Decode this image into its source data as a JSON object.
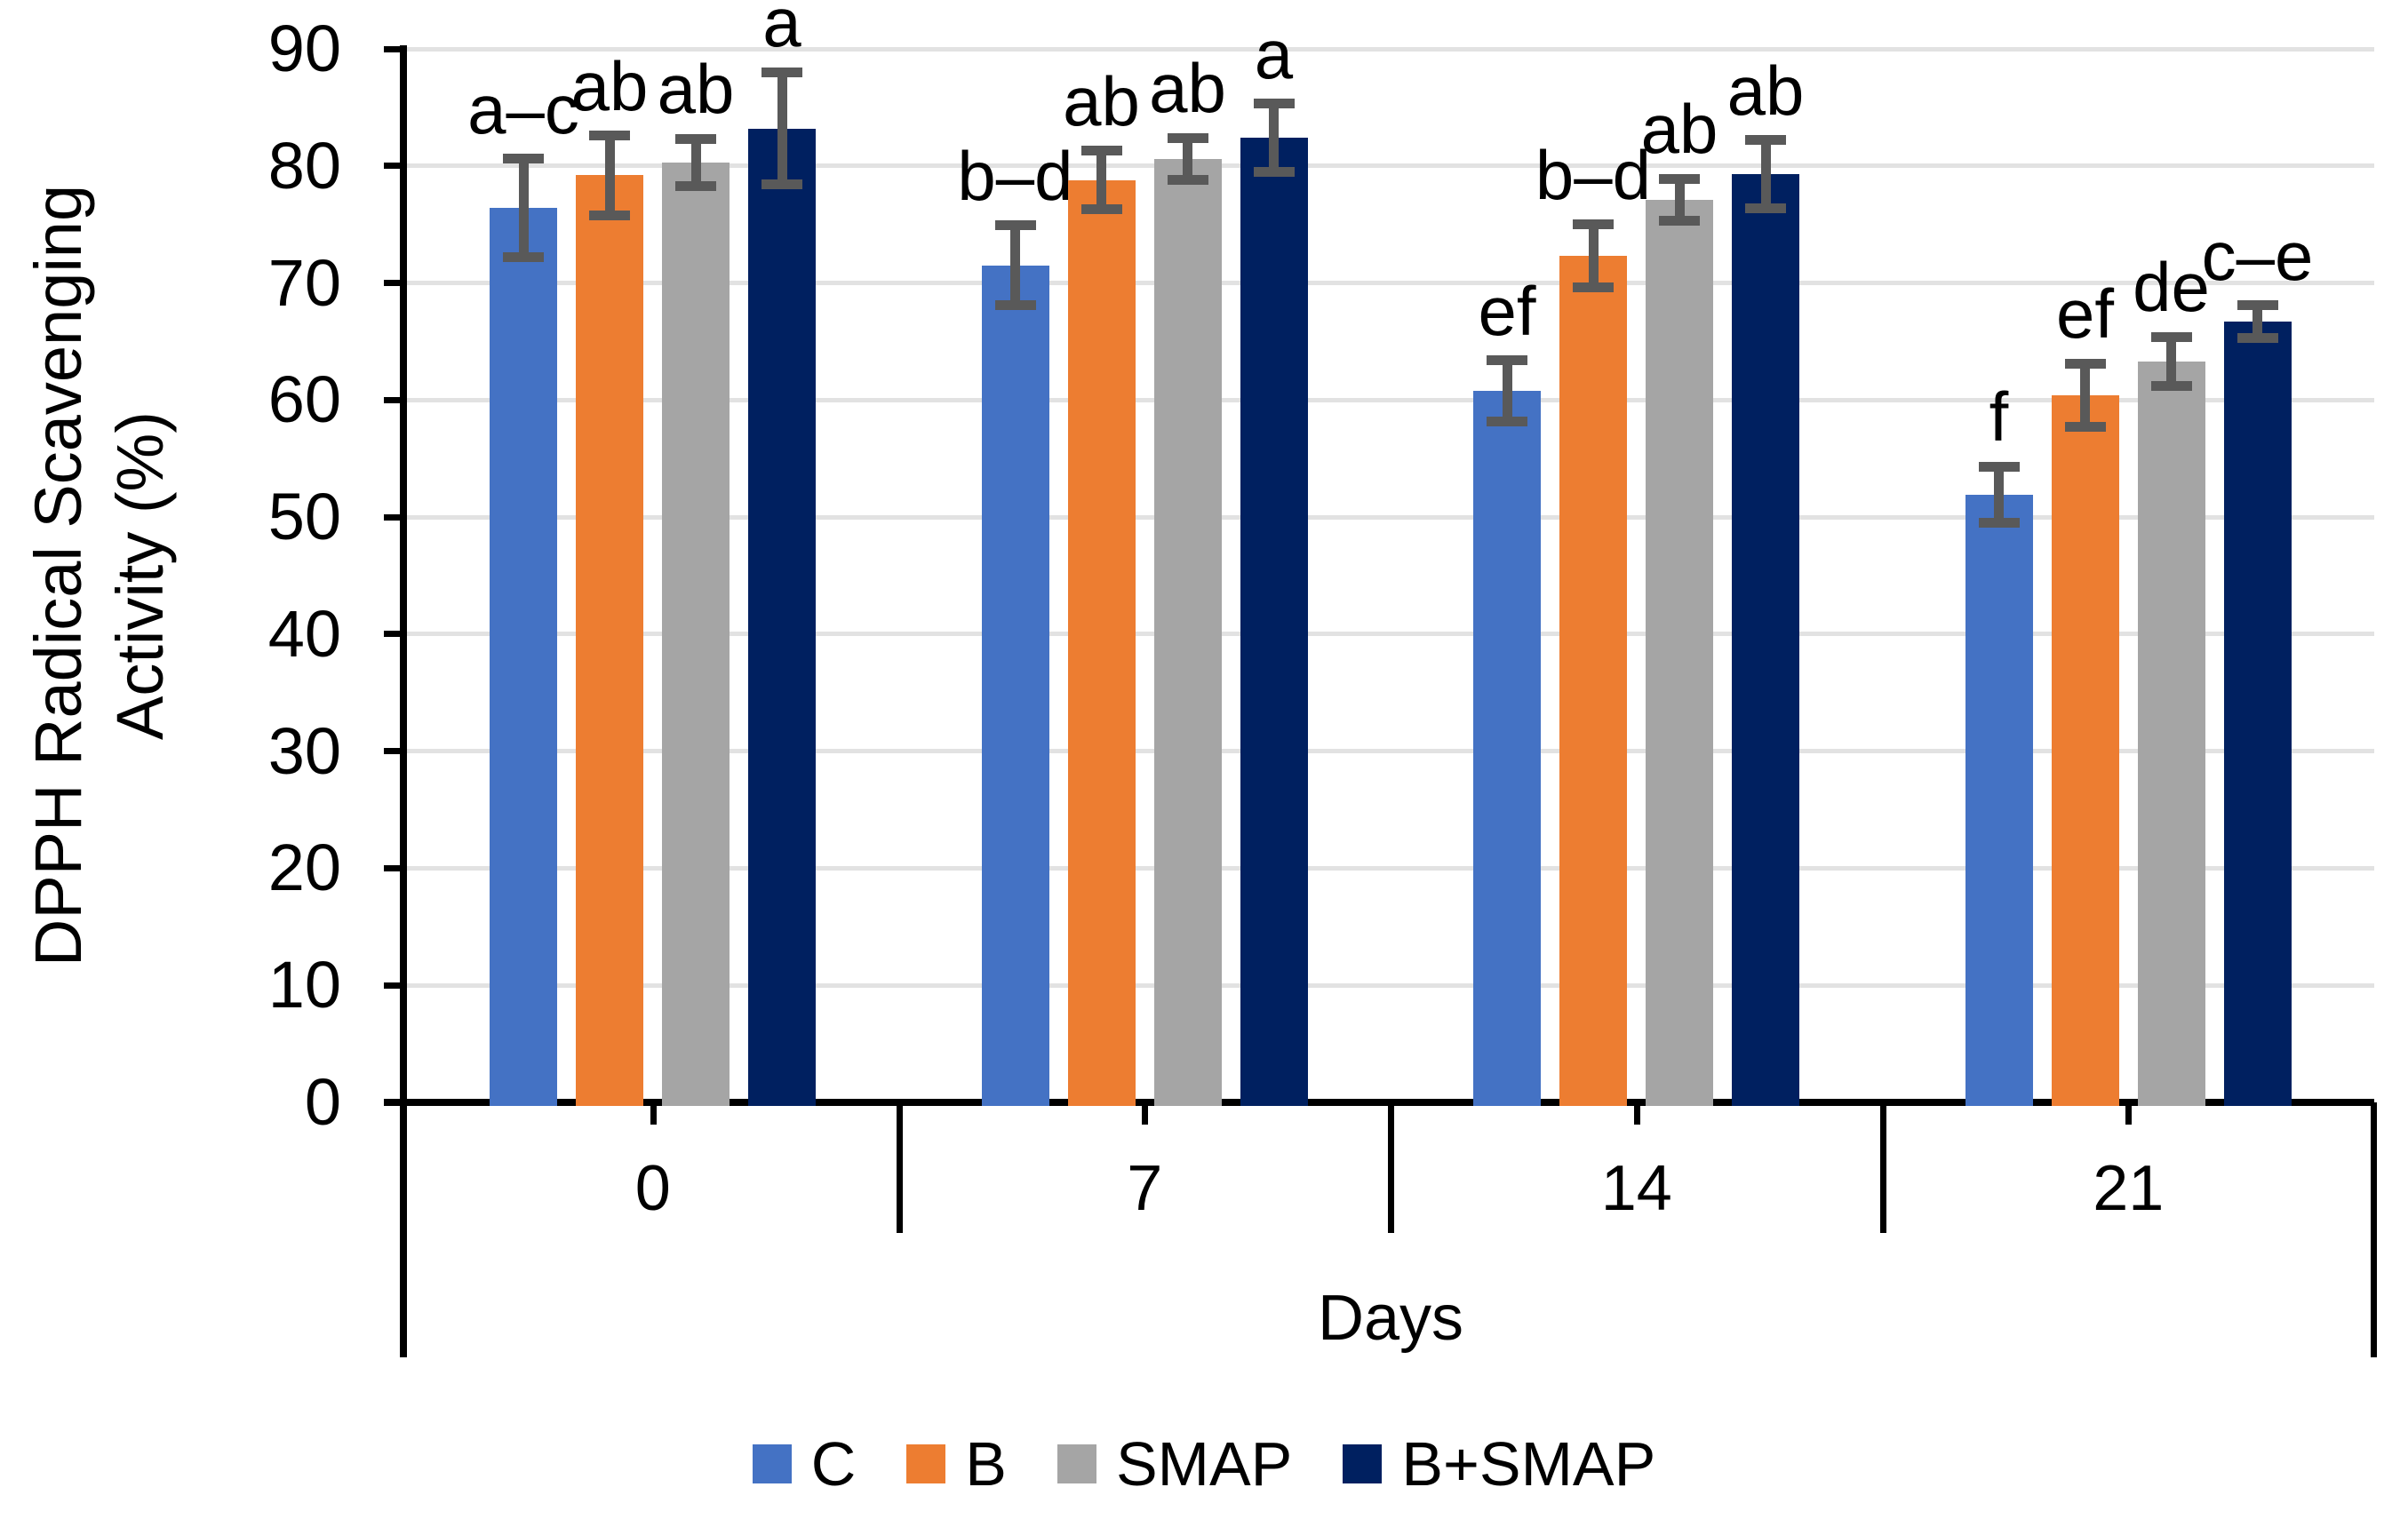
{
  "figure": {
    "y_title_line1": "DPPH Radical Scavenging",
    "y_title_line2": "Activity (%)",
    "x_title": "Days"
  },
  "chart_data": {
    "type": "bar",
    "title": "",
    "xlabel": "Days",
    "ylabel": "DPPH Radical Scavenging Activity (%)",
    "categories": [
      "0",
      "7",
      "14",
      "21"
    ],
    "ylim": [
      0,
      90
    ],
    "yticks": [
      0,
      10,
      20,
      30,
      40,
      50,
      60,
      70,
      80,
      90
    ],
    "grid": "horizontal gridlines on, light gray",
    "legend_position": "bottom center",
    "error_bars": "symmetric, values are plus-minus half-lengths",
    "series": [
      {
        "name": "C",
        "color": "#4472C4",
        "values": [
          76.4,
          71.5,
          60.8,
          51.9
        ],
        "errors": [
          4.2,
          3.4,
          2.6,
          2.4
        ],
        "letters": [
          "a–c",
          "b–d",
          "ef",
          "f"
        ]
      },
      {
        "name": "B",
        "color": "#ED7D31",
        "values": [
          79.2,
          78.8,
          72.3,
          60.4
        ],
        "errors": [
          3.4,
          2.5,
          2.7,
          2.7
        ],
        "letters": [
          "ab",
          "ab",
          "b–d",
          "ef"
        ]
      },
      {
        "name": "SMAP",
        "color": "#A5A5A5",
        "values": [
          80.3,
          80.6,
          77.1,
          63.3
        ],
        "errors": [
          2.0,
          1.8,
          1.8,
          2.1
        ],
        "letters": [
          "ab",
          "ab",
          "ab",
          "de"
        ]
      },
      {
        "name": "B+SMAP",
        "color": "#002060",
        "values": [
          83.2,
          82.4,
          79.3,
          66.7
        ],
        "errors": [
          4.8,
          2.9,
          2.9,
          1.4
        ],
        "letters": [
          "a",
          "a",
          "ab",
          "c–e"
        ]
      }
    ],
    "error_bar_color": "#595959",
    "gridline_color": "#E2E2E2",
    "axis_color": "#000000"
  }
}
